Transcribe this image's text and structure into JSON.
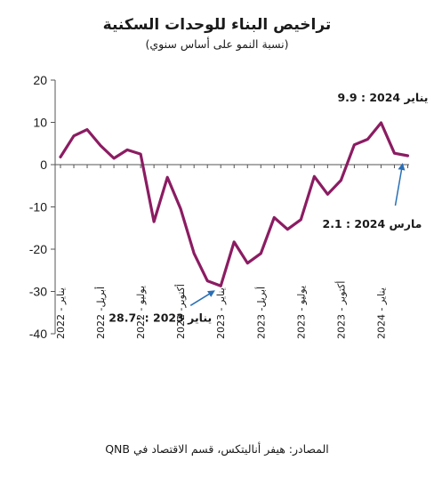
{
  "chart_data": {
    "type": "line",
    "title": "تراخيص البناء للوحدات السكنية",
    "subtitle": "(نسبة النمو على أساس سنوي)",
    "source": "المصادر: هيفر أناليتكس، قسم الاقتصاد في QNB",
    "xlabel": "",
    "ylabel": "",
    "ylim": [
      -40,
      20
    ],
    "yticks": [
      20,
      10,
      0,
      -10,
      -20,
      -30,
      -40
    ],
    "grid": false,
    "x": [
      "2022-01",
      "2022-02",
      "2022-03",
      "2022-04",
      "2022-05",
      "2022-06",
      "2022-07",
      "2022-08",
      "2022-09",
      "2022-10",
      "2022-11",
      "2022-12",
      "2023-01",
      "2023-02",
      "2023-03",
      "2023-04",
      "2023-05",
      "2023-06",
      "2023-07",
      "2023-08",
      "2023-09",
      "2023-10",
      "2023-11",
      "2023-12",
      "2024-01",
      "2024-02",
      "2024-03"
    ],
    "x_tick_labels": [
      {
        "index": 0,
        "label": "يناير - 2022"
      },
      {
        "index": 3,
        "label": "أبريل- 2022"
      },
      {
        "index": 6,
        "label": "يوليو - 2022"
      },
      {
        "index": 9,
        "label": "أكتوبر- 2022"
      },
      {
        "index": 12,
        "label": "يناير - 2023"
      },
      {
        "index": 15,
        "label": "أبريل- 2023"
      },
      {
        "index": 18,
        "label": "يوليو - 2023"
      },
      {
        "index": 21,
        "label": "أكتوبر - 2023"
      },
      {
        "index": 24,
        "label": "يناير - 2024"
      }
    ],
    "series": [
      {
        "color": "#8b1c62",
        "values": [
          1.8,
          6.8,
          8.3,
          4.5,
          1.5,
          3.5,
          2.5,
          -13.5,
          -3.0,
          -10.5,
          -21.0,
          -27.5,
          -28.7,
          -18.3,
          -23.3,
          -21.0,
          -12.5,
          -15.3,
          -13.0,
          -2.8,
          -7.0,
          -3.7,
          4.7,
          6.0,
          9.9,
          2.7,
          2.1
        ]
      }
    ],
    "annotations": [
      {
        "text": "يناير 2024 : 9.9",
        "target_index": 24,
        "arrow": false
      },
      {
        "text": "مارس 2024 : 2.1",
        "target_index": 26,
        "arrow": true
      },
      {
        "text": "يناير 2023 : -28.7",
        "target_index": 12,
        "arrow": true
      }
    ],
    "arrow_color": "#2a6fb5"
  }
}
